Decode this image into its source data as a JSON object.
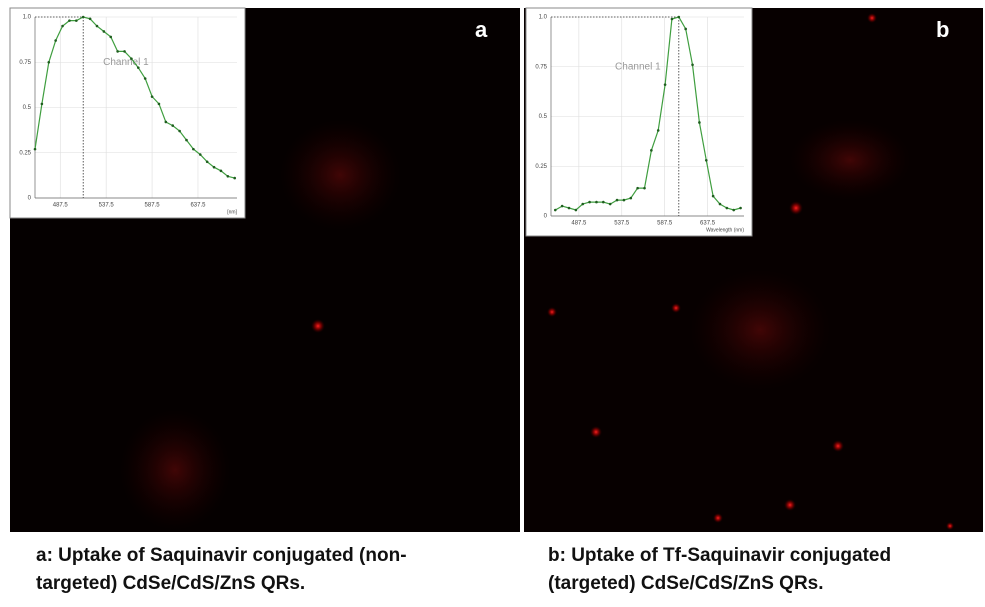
{
  "panels": [
    {
      "label": "a",
      "caption": [
        "a: Uptake of Saquinavir conjugated (non-",
        "targeted) CdSe/CdS/ZnS QRs."
      ]
    },
    {
      "label": "b",
      "caption": [
        "b: Uptake of Tf-Saquinavir conjugated",
        "(targeted) CdSe/CdS/ZnS QRs."
      ]
    }
  ],
  "chart_data": [
    {
      "type": "line",
      "annotation": "Channel 1",
      "x_label": "[nm]",
      "color": "#3f9e3f",
      "grid": true,
      "x": [
        460,
        467.5,
        475,
        482.5,
        490,
        497.5,
        505,
        512.5,
        520,
        527.5,
        535,
        542.5,
        550,
        557.5,
        565,
        572.5,
        580,
        587.5,
        595,
        602.5,
        610,
        617.5,
        625,
        632.5,
        640,
        647.5,
        655,
        662.5,
        670,
        677.5
      ],
      "values": [
        0.27,
        0.52,
        0.75,
        0.87,
        0.95,
        0.98,
        0.98,
        1.0,
        0.99,
        0.95,
        0.92,
        0.89,
        0.81,
        0.81,
        0.77,
        0.72,
        0.66,
        0.56,
        0.52,
        0.42,
        0.4,
        0.37,
        0.32,
        0.27,
        0.24,
        0.2,
        0.17,
        0.15,
        0.12,
        0.11
      ],
      "xlim": [
        460,
        680
      ],
      "xticks": [
        487.5,
        537.5,
        587.5,
        637.5
      ],
      "ylim": [
        0,
        1
      ],
      "yticks": [
        0,
        0.25,
        0.5,
        0.75,
        {
          "value": 1,
          "label": "1.0"
        }
      ]
    },
    {
      "type": "line",
      "annotation": "Channel 1",
      "x_label": "Wavelength (nm)",
      "color": "#3f9e3f",
      "grid": true,
      "x": [
        460,
        468,
        476,
        484,
        492,
        500,
        508,
        516,
        524,
        532,
        540,
        548,
        556,
        564,
        572,
        580,
        588,
        596,
        604,
        612,
        620,
        628,
        636,
        644,
        652,
        660,
        668,
        676
      ],
      "values": [
        0.03,
        0.05,
        0.04,
        0.03,
        0.06,
        0.07,
        0.07,
        0.07,
        0.06,
        0.08,
        0.08,
        0.09,
        0.14,
        0.14,
        0.33,
        0.43,
        0.66,
        0.99,
        1.0,
        0.94,
        0.76,
        0.47,
        0.28,
        0.1,
        0.06,
        0.04,
        0.03,
        0.04
      ],
      "xlim": [
        455,
        680
      ],
      "xticks": [
        487.5,
        537.5,
        587.5,
        637.5
      ],
      "ylim": [
        0,
        1
      ],
      "yticks": [
        0,
        0.25,
        0.5,
        0.75,
        {
          "value": 1,
          "label": "1.0"
        }
      ]
    }
  ]
}
